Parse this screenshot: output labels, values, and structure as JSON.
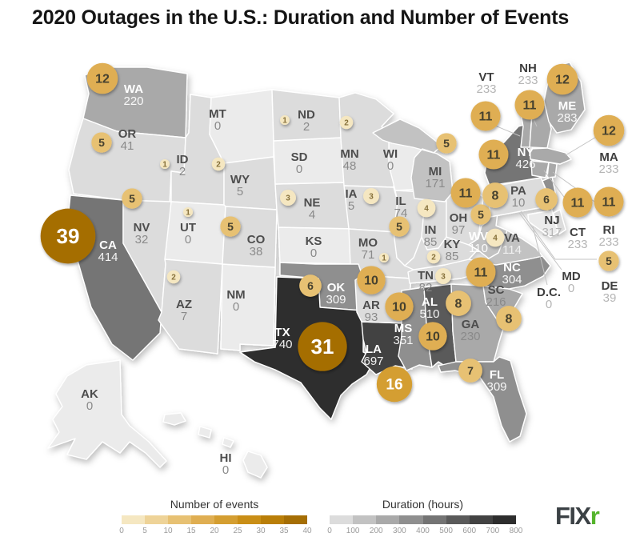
{
  "title": "2020 Outages in the U.S.: Duration and Number of Events",
  "logo": {
    "text_dark": "FIX",
    "text_green": "r",
    "dark_color": "#3b4145",
    "green_color": "#54b42c"
  },
  "legends": {
    "events": {
      "title": "Number of events",
      "ticks": [
        "0",
        "5",
        "10",
        "15",
        "20",
        "25",
        "30",
        "35",
        "40"
      ],
      "colors": [
        "#f5e7c1",
        "#eed398",
        "#e7c173",
        "#dfae52",
        "#d49e31",
        "#c98e16",
        "#b97e08",
        "#a56e04"
      ]
    },
    "duration": {
      "title": "Duration (hours)",
      "ticks": [
        "0",
        "100",
        "200",
        "300",
        "400",
        "500",
        "600",
        "700",
        "800"
      ],
      "colors": [
        "#dcdcdc",
        "#c2c2c2",
        "#a9a9a9",
        "#8f8f8f",
        "#747474",
        "#5a5a5a",
        "#424242",
        "#2d2d2d"
      ],
      "zero_color": "#ebebeb"
    }
  },
  "chart_data": {
    "type": "choropleth-bubble-map",
    "region": "United States",
    "series": [
      {
        "name": "Duration (hours)",
        "encoding": "state fill shade",
        "range": [
          0,
          800
        ]
      },
      {
        "name": "Number of events",
        "encoding": "bubble size",
        "range": [
          0,
          40
        ]
      }
    ],
    "states": [
      {
        "abbr": "WA",
        "duration": 220,
        "events": 12
      },
      {
        "abbr": "OR",
        "duration": 41,
        "events": 5
      },
      {
        "abbr": "CA",
        "duration": 414,
        "events": 39
      },
      {
        "abbr": "NV",
        "duration": 32,
        "events": 5
      },
      {
        "abbr": "ID",
        "duration": 2,
        "events": 1
      },
      {
        "abbr": "MT",
        "duration": 0,
        "events": 0
      },
      {
        "abbr": "WY",
        "duration": 5,
        "events": 2
      },
      {
        "abbr": "UT",
        "duration": 0,
        "events": 1
      },
      {
        "abbr": "AZ",
        "duration": 7,
        "events": 2
      },
      {
        "abbr": "NM",
        "duration": 0,
        "events": 0
      },
      {
        "abbr": "CO",
        "duration": 38,
        "events": 5
      },
      {
        "abbr": "KS",
        "duration": 0,
        "events": 0
      },
      {
        "abbr": "NE",
        "duration": 4,
        "events": 3
      },
      {
        "abbr": "SD",
        "duration": 0,
        "events": 0
      },
      {
        "abbr": "ND",
        "duration": 2,
        "events": 1
      },
      {
        "abbr": "MN",
        "duration": 48,
        "events": 2
      },
      {
        "abbr": "WI",
        "duration": 0,
        "events": 0
      },
      {
        "abbr": "IA",
        "duration": 5,
        "events": 3
      },
      {
        "abbr": "MO",
        "duration": 71,
        "events": 1
      },
      {
        "abbr": "OK",
        "duration": 309,
        "events": 6
      },
      {
        "abbr": "TX",
        "duration": 740,
        "events": 31
      },
      {
        "abbr": "LA",
        "duration": 697,
        "events": 16
      },
      {
        "abbr": "AR",
        "duration": 93,
        "events": 10
      },
      {
        "abbr": "MS",
        "duration": 351,
        "events": 10
      },
      {
        "abbr": "AL",
        "duration": 510,
        "events": 10
      },
      {
        "abbr": "GA",
        "duration": 230,
        "events": 8
      },
      {
        "abbr": "FL",
        "duration": 309,
        "events": 7
      },
      {
        "abbr": "SC",
        "duration": 216,
        "events": 8
      },
      {
        "abbr": "NC",
        "duration": 304,
        "events": 11
      },
      {
        "abbr": "TN",
        "duration": 82,
        "events": 3
      },
      {
        "abbr": "KY",
        "duration": 85,
        "events": 2
      },
      {
        "abbr": "IL",
        "duration": 74,
        "events": 5
      },
      {
        "abbr": "IN",
        "duration": 85,
        "events": 4
      },
      {
        "abbr": "OH",
        "duration": 97,
        "events": 11
      },
      {
        "abbr": "MI",
        "duration": 171,
        "events": 5
      },
      {
        "abbr": "WV",
        "duration": 110,
        "events": 5
      },
      {
        "abbr": "VA",
        "duration": 114,
        "events": 4
      },
      {
        "abbr": "PA",
        "duration": 10,
        "events": 8
      },
      {
        "abbr": "NY",
        "duration": 426,
        "events": 11
      },
      {
        "abbr": "NJ",
        "duration": 317,
        "events": 6
      },
      {
        "abbr": "DE",
        "duration": 39,
        "events": 5
      },
      {
        "abbr": "MD",
        "duration": 0,
        "events": 0
      },
      {
        "abbr": "D.C.",
        "duration": 0,
        "events": 0
      },
      {
        "abbr": "VT",
        "duration": 233,
        "events": 11
      },
      {
        "abbr": "NH",
        "duration": 233,
        "events": 11
      },
      {
        "abbr": "ME",
        "duration": 283,
        "events": 12
      },
      {
        "abbr": "MA",
        "duration": 233,
        "events": 12
      },
      {
        "abbr": "CT",
        "duration": 233,
        "events": 11
      },
      {
        "abbr": "RI",
        "duration": 233,
        "events": 11
      },
      {
        "abbr": "AK",
        "duration": 0,
        "events": 0
      },
      {
        "abbr": "HI",
        "duration": 0,
        "events": 0
      }
    ]
  }
}
